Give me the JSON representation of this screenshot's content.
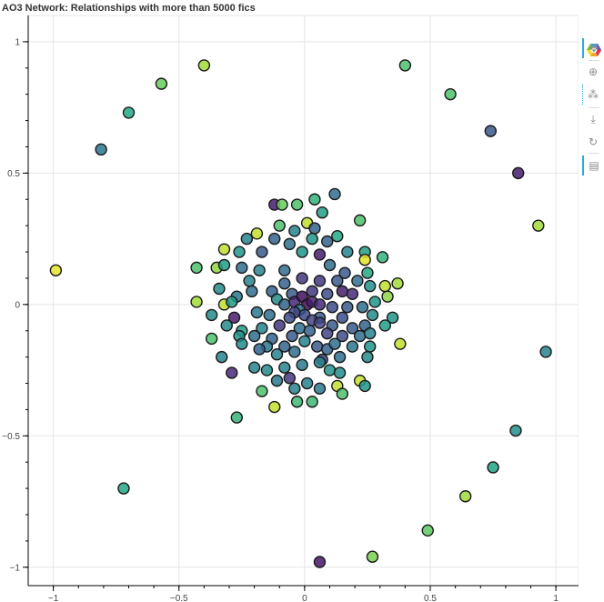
{
  "title": "AO3 Network: Relationships with more than 5000 fics",
  "toolbar": {
    "logo_icon": "bokeh-logo-icon",
    "tools": [
      {
        "name": "pan-tool",
        "icon": "move-icon",
        "glyph": "✥",
        "active": true
      },
      {
        "name": "box-zoom-tool",
        "icon": "box-zoom-icon",
        "glyph": "⊕",
        "active": false
      },
      {
        "name": "wheel-zoom-tool",
        "icon": "wheel-zoom-icon",
        "glyph": "⁂",
        "active": true
      },
      {
        "name": "save-tool",
        "icon": "download-icon",
        "glyph": "⤓",
        "active": false
      },
      {
        "name": "reset-tool",
        "icon": "reset-icon",
        "glyph": "↻",
        "active": false
      },
      {
        "name": "hover-tool",
        "icon": "comment-icon",
        "glyph": "▤",
        "active": true
      }
    ]
  },
  "chart_data": {
    "type": "scatter",
    "title": "AO3 Network: Relationships with more than 5000 fics",
    "xlim": [
      -1.1,
      1.09
    ],
    "ylim": [
      -1.07,
      1.1
    ],
    "xticks": [
      -1,
      -0.5,
      0,
      0.5,
      1
    ],
    "xtick_labels": [
      "−1",
      "−0.5",
      "0",
      "0.5",
      "1"
    ],
    "yticks": [
      -1,
      -0.5,
      0,
      0.5,
      1
    ],
    "ytick_labels": [
      "−1",
      "−0.5",
      "0",
      "0.5",
      "1"
    ],
    "grid": true,
    "legend": "none",
    "colormap": "viridis",
    "points": [
      {
        "x": -0.4,
        "y": 0.91,
        "c": 0.92
      },
      {
        "x": -0.57,
        "y": 0.84,
        "c": 0.86
      },
      {
        "x": -0.7,
        "y": 0.73,
        "c": 0.75
      },
      {
        "x": -0.81,
        "y": 0.59,
        "c": 0.5
      },
      {
        "x": -0.99,
        "y": 0.13,
        "c": 0.98
      },
      {
        "x": 0.4,
        "y": 0.91,
        "c": 0.82
      },
      {
        "x": 0.58,
        "y": 0.8,
        "c": 0.82
      },
      {
        "x": 0.74,
        "y": 0.66,
        "c": 0.34
      },
      {
        "x": 0.85,
        "y": 0.5,
        "c": 0.1
      },
      {
        "x": 0.93,
        "y": 0.3,
        "c": 0.92
      },
      {
        "x": 0.96,
        "y": -0.18,
        "c": 0.55
      },
      {
        "x": 0.84,
        "y": -0.48,
        "c": 0.62
      },
      {
        "x": 0.75,
        "y": -0.62,
        "c": 0.72
      },
      {
        "x": 0.64,
        "y": -0.73,
        "c": 0.92
      },
      {
        "x": 0.49,
        "y": -0.86,
        "c": 0.85
      },
      {
        "x": 0.27,
        "y": -0.96,
        "c": 0.88
      },
      {
        "x": 0.06,
        "y": -0.98,
        "c": 0.08
      },
      {
        "x": -0.72,
        "y": -0.7,
        "c": 0.75
      },
      {
        "x": -0.27,
        "y": -0.43,
        "c": 0.78
      },
      {
        "x": -0.12,
        "y": 0.38,
        "c": 0.1
      },
      {
        "x": -0.09,
        "y": 0.38,
        "c": 0.86
      },
      {
        "x": -0.03,
        "y": 0.38,
        "c": 0.82
      },
      {
        "x": 0.04,
        "y": 0.4,
        "c": 0.78
      },
      {
        "x": 0.12,
        "y": 0.42,
        "c": 0.45
      },
      {
        "x": 0.07,
        "y": 0.35,
        "c": 0.7
      },
      {
        "x": 0.01,
        "y": 0.31,
        "c": 0.95
      },
      {
        "x": -0.1,
        "y": 0.3,
        "c": 0.82
      },
      {
        "x": -0.04,
        "y": 0.28,
        "c": 0.55
      },
      {
        "x": 0.04,
        "y": 0.29,
        "c": 0.4
      },
      {
        "x": 0.13,
        "y": 0.26,
        "c": 0.75
      },
      {
        "x": 0.22,
        "y": 0.32,
        "c": 0.82
      },
      {
        "x": -0.19,
        "y": 0.27,
        "c": 0.95
      },
      {
        "x": -0.23,
        "y": 0.25,
        "c": 0.55
      },
      {
        "x": -0.12,
        "y": 0.25,
        "c": 0.4
      },
      {
        "x": -0.06,
        "y": 0.23,
        "c": 0.45
      },
      {
        "x": 0.03,
        "y": 0.25,
        "c": 0.65
      },
      {
        "x": 0.09,
        "y": 0.24,
        "c": 0.4
      },
      {
        "x": 0.17,
        "y": 0.2,
        "c": 0.55
      },
      {
        "x": 0.24,
        "y": 0.2,
        "c": 0.7
      },
      {
        "x": -0.32,
        "y": 0.21,
        "c": 0.95
      },
      {
        "x": -0.26,
        "y": 0.2,
        "c": 0.65
      },
      {
        "x": -0.17,
        "y": 0.2,
        "c": 0.35
      },
      {
        "x": -0.01,
        "y": 0.2,
        "c": 0.65
      },
      {
        "x": 0.06,
        "y": 0.19,
        "c": 0.1
      },
      {
        "x": 0.24,
        "y": 0.17,
        "c": 0.98
      },
      {
        "x": 0.31,
        "y": 0.18,
        "c": 0.78
      },
      {
        "x": -0.43,
        "y": 0.14,
        "c": 0.82
      },
      {
        "x": -0.35,
        "y": 0.14,
        "c": 0.9
      },
      {
        "x": -0.32,
        "y": 0.15,
        "c": 0.7
      },
      {
        "x": -0.25,
        "y": 0.14,
        "c": 0.45
      },
      {
        "x": -0.18,
        "y": 0.13,
        "c": 0.55
      },
      {
        "x": -0.08,
        "y": 0.13,
        "c": 0.45
      },
      {
        "x": 0.1,
        "y": 0.15,
        "c": 0.45
      },
      {
        "x": 0.16,
        "y": 0.12,
        "c": 0.35
      },
      {
        "x": 0.25,
        "y": 0.12,
        "c": 0.75
      },
      {
        "x": -0.22,
        "y": 0.09,
        "c": 0.55
      },
      {
        "x": -0.08,
        "y": 0.08,
        "c": 0.4
      },
      {
        "x": -0.01,
        "y": 0.1,
        "c": 0.2
      },
      {
        "x": 0.06,
        "y": 0.09,
        "c": 0.2
      },
      {
        "x": 0.13,
        "y": 0.09,
        "c": 0.35
      },
      {
        "x": 0.21,
        "y": 0.09,
        "c": 0.45
      },
      {
        "x": 0.32,
        "y": 0.07,
        "c": 0.95
      },
      {
        "x": 0.37,
        "y": 0.08,
        "c": 0.92
      },
      {
        "x": 0.26,
        "y": 0.07,
        "c": 0.62
      },
      {
        "x": -0.34,
        "y": 0.06,
        "c": 0.6
      },
      {
        "x": -0.27,
        "y": 0.03,
        "c": 0.5
      },
      {
        "x": -0.21,
        "y": 0.05,
        "c": 0.45
      },
      {
        "x": -0.13,
        "y": 0.05,
        "c": 0.4
      },
      {
        "x": -0.05,
        "y": 0.04,
        "c": 0.35
      },
      {
        "x": 0.03,
        "y": 0.05,
        "c": 0.2
      },
      {
        "x": 0.09,
        "y": 0.04,
        "c": 0.3
      },
      {
        "x": 0.15,
        "y": 0.05,
        "c": 0.1
      },
      {
        "x": 0.19,
        "y": 0.04,
        "c": 0.15
      },
      {
        "x": 0.28,
        "y": 0.01,
        "c": 0.65
      },
      {
        "x": 0.33,
        "y": 0.03,
        "c": 0.9
      },
      {
        "x": -0.43,
        "y": 0.01,
        "c": 0.92
      },
      {
        "x": -0.32,
        "y": 0.0,
        "c": 0.95
      },
      {
        "x": -0.29,
        "y": 0.01,
        "c": 0.7
      },
      {
        "x": -0.11,
        "y": 0.02,
        "c": 0.6
      },
      {
        "x": -0.08,
        "y": 0.0,
        "c": 0.4
      },
      {
        "x": -0.04,
        "y": 0.01,
        "c": 0.15
      },
      {
        "x": -0.01,
        "y": 0.03,
        "c": 0.05
      },
      {
        "x": 0.01,
        "y": 0.0,
        "c": 0.05
      },
      {
        "x": 0.03,
        "y": 0.01,
        "c": 0.1
      },
      {
        "x": 0.06,
        "y": 0.0,
        "c": 0.15
      },
      {
        "x": 0.11,
        "y": -0.01,
        "c": 0.3
      },
      {
        "x": 0.17,
        "y": -0.01,
        "c": 0.35
      },
      {
        "x": 0.23,
        "y": -0.01,
        "c": 0.45
      },
      {
        "x": -0.02,
        "y": -0.02,
        "c": 0.45
      },
      {
        "x": 0.0,
        "y": -0.04,
        "c": 0.3
      },
      {
        "x": -0.04,
        "y": -0.03,
        "c": 0.25
      },
      {
        "x": -0.37,
        "y": -0.04,
        "c": 0.6
      },
      {
        "x": -0.28,
        "y": -0.05,
        "c": 0.1
      },
      {
        "x": -0.19,
        "y": -0.03,
        "c": 0.5
      },
      {
        "x": -0.14,
        "y": -0.04,
        "c": 0.45
      },
      {
        "x": -0.06,
        "y": -0.05,
        "c": 0.3
      },
      {
        "x": 0.06,
        "y": -0.05,
        "c": 0.35
      },
      {
        "x": 0.15,
        "y": -0.05,
        "c": 0.3
      },
      {
        "x": 0.27,
        "y": -0.04,
        "c": 0.6
      },
      {
        "x": 0.35,
        "y": -0.05,
        "c": 0.65
      },
      {
        "x": 0.03,
        "y": -0.06,
        "c": 0.25
      },
      {
        "x": -0.31,
        "y": -0.08,
        "c": 0.6
      },
      {
        "x": -0.25,
        "y": -0.1,
        "c": 0.7
      },
      {
        "x": -0.17,
        "y": -0.09,
        "c": 0.55
      },
      {
        "x": -0.1,
        "y": -0.08,
        "c": 0.2
      },
      {
        "x": -0.02,
        "y": -0.09,
        "c": 0.45
      },
      {
        "x": 0.06,
        "y": -0.07,
        "c": 0.25
      },
      {
        "x": 0.11,
        "y": -0.08,
        "c": 0.35
      },
      {
        "x": 0.19,
        "y": -0.09,
        "c": 0.35
      },
      {
        "x": 0.24,
        "y": -0.08,
        "c": 0.4
      },
      {
        "x": 0.32,
        "y": -0.08,
        "c": 0.7
      },
      {
        "x": -0.37,
        "y": -0.13,
        "c": 0.82
      },
      {
        "x": -0.26,
        "y": -0.12,
        "c": 0.65
      },
      {
        "x": -0.2,
        "y": -0.12,
        "c": 0.45
      },
      {
        "x": -0.13,
        "y": -0.13,
        "c": 0.4
      },
      {
        "x": -0.05,
        "y": -0.12,
        "c": 0.35
      },
      {
        "x": 0.02,
        "y": -0.1,
        "c": 0.4
      },
      {
        "x": 0.09,
        "y": -0.11,
        "c": 0.25
      },
      {
        "x": 0.15,
        "y": -0.12,
        "c": 0.3
      },
      {
        "x": 0.22,
        "y": -0.12,
        "c": 0.45
      },
      {
        "x": 0.26,
        "y": -0.11,
        "c": 0.55
      },
      {
        "x": -0.25,
        "y": -0.15,
        "c": 0.6
      },
      {
        "x": -0.15,
        "y": -0.16,
        "c": 0.5
      },
      {
        "x": -0.08,
        "y": -0.16,
        "c": 0.4
      },
      {
        "x": 0.0,
        "y": -0.14,
        "c": 0.55
      },
      {
        "x": 0.05,
        "y": -0.16,
        "c": 0.35
      },
      {
        "x": 0.09,
        "y": -0.17,
        "c": 0.4
      },
      {
        "x": 0.12,
        "y": -0.15,
        "c": 0.45
      },
      {
        "x": 0.19,
        "y": -0.16,
        "c": 0.5
      },
      {
        "x": 0.26,
        "y": -0.16,
        "c": 0.65
      },
      {
        "x": 0.38,
        "y": -0.15,
        "c": 0.95
      },
      {
        "x": -0.33,
        "y": -0.2,
        "c": 0.55
      },
      {
        "x": -0.18,
        "y": -0.17,
        "c": 0.4
      },
      {
        "x": -0.11,
        "y": -0.19,
        "c": 0.55
      },
      {
        "x": -0.04,
        "y": -0.18,
        "c": 0.45
      },
      {
        "x": 0.07,
        "y": -0.21,
        "c": 0.25
      },
      {
        "x": 0.14,
        "y": -0.2,
        "c": 0.45
      },
      {
        "x": 0.25,
        "y": -0.2,
        "c": 0.6
      },
      {
        "x": -0.29,
        "y": -0.26,
        "c": 0.15
      },
      {
        "x": -0.2,
        "y": -0.24,
        "c": 0.55
      },
      {
        "x": -0.15,
        "y": -0.25,
        "c": 0.6
      },
      {
        "x": -0.08,
        "y": -0.24,
        "c": 0.55
      },
      {
        "x": -0.01,
        "y": -0.23,
        "c": 0.5
      },
      {
        "x": 0.06,
        "y": -0.22,
        "c": 0.55
      },
      {
        "x": 0.1,
        "y": -0.25,
        "c": 0.65
      },
      {
        "x": 0.14,
        "y": -0.26,
        "c": 0.6
      },
      {
        "x": -0.11,
        "y": -0.29,
        "c": 0.5
      },
      {
        "x": -0.06,
        "y": -0.28,
        "c": 0.2
      },
      {
        "x": 0.01,
        "y": -0.3,
        "c": 0.55
      },
      {
        "x": 0.22,
        "y": -0.29,
        "c": 0.95
      },
      {
        "x": -0.17,
        "y": -0.33,
        "c": 0.82
      },
      {
        "x": -0.04,
        "y": -0.32,
        "c": 0.55
      },
      {
        "x": 0.06,
        "y": -0.32,
        "c": 0.5
      },
      {
        "x": 0.13,
        "y": -0.31,
        "c": 0.95
      },
      {
        "x": 0.15,
        "y": -0.34,
        "c": 0.82
      },
      {
        "x": 0.24,
        "y": -0.31,
        "c": 0.65
      },
      {
        "x": -0.03,
        "y": -0.37,
        "c": 0.8
      },
      {
        "x": -0.12,
        "y": -0.39,
        "c": 0.95
      },
      {
        "x": 0.03,
        "y": -0.37,
        "c": 0.8
      }
    ]
  }
}
